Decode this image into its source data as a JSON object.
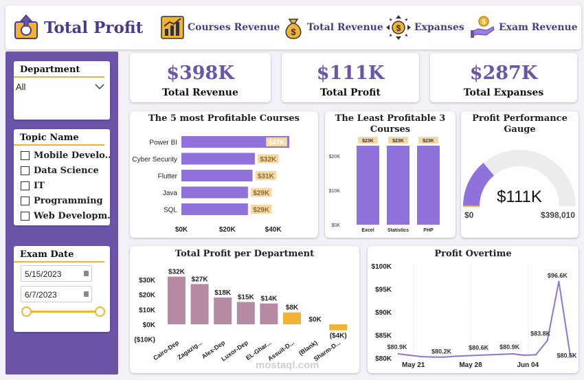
{
  "header": {
    "title": "Total Profit",
    "nav": [
      {
        "label": "Courses Revenue",
        "icon": "growth-chart-icon"
      },
      {
        "label": "Total Revenue",
        "icon": "money-bag-icon"
      },
      {
        "label": "Expanses",
        "icon": "dollar-arrows-icon"
      },
      {
        "label": "Exam Revenue",
        "icon": "hand-coins-icon"
      }
    ]
  },
  "filters": {
    "department": {
      "title": "Department",
      "selected": "All"
    },
    "topic": {
      "title": "Topic Name",
      "items": [
        "Mobile Develo...",
        "Data Science",
        "IT",
        "Programming",
        "Web Developm..."
      ]
    },
    "exam_date": {
      "title": "Exam Date",
      "start": "5/15/2023",
      "end": "6/7/2023"
    }
  },
  "kpis": [
    {
      "value": "$398K",
      "label": "Total Revenue"
    },
    {
      "value": "$111K",
      "label": "Total Profit"
    },
    {
      "value": "$287K",
      "label": "Total Expanses"
    }
  ],
  "colors": {
    "accent": "#6a55a9",
    "bar": "#8f72dc",
    "label_bg": "#f6d9a2",
    "dept_bar": "#b58aa2",
    "neg_bar": "#f2b233",
    "line": "#8f72dc"
  },
  "watermark": "mostaql.com",
  "chart_data": [
    {
      "type": "bar",
      "orientation": "horizontal",
      "title": "The 5 most Profitable Courses",
      "categories": [
        "Power BI",
        "Cyber Security",
        "Flutter",
        "Java",
        "SQL"
      ],
      "values": [
        47,
        32,
        31,
        29,
        29
      ],
      "data_labels": [
        "$47K",
        "$32K",
        "$31K",
        "$29K",
        "$29K"
      ],
      "xlim": [
        0,
        47
      ],
      "x_ticks": [
        "$0K",
        "$20K",
        "$40K"
      ]
    },
    {
      "type": "bar",
      "title": "The Least Profitable 3 Courses",
      "categories": [
        "Excel",
        "Statistics",
        "PHP"
      ],
      "values": [
        23,
        23,
        23
      ],
      "data_labels": [
        "$23K",
        "$23K",
        "$23K"
      ],
      "ylim": [
        0,
        27
      ],
      "y_ticks": [
        "$0K",
        "$10K",
        "$20K"
      ]
    },
    {
      "type": "gauge",
      "title": "Profit Performance Gauge",
      "value": 111,
      "value_label": "$111K",
      "min_label": "$0",
      "max_label": "$398,010",
      "max": 398.01
    },
    {
      "type": "bar",
      "title": "Total Profit per Department",
      "categories": [
        "Cairo-Dep",
        "Zagazig...",
        "Alex-Dep",
        "Luxor-Dep",
        "EL-Ghar...",
        "Assuit-D...",
        "(Blank)",
        "Sharm-D..."
      ],
      "values": [
        32,
        27,
        18,
        15,
        14,
        8,
        0,
        -4
      ],
      "data_labels": [
        "$32K",
        "$27K",
        "$18K",
        "$15K",
        "$14K",
        "$8K",
        "$0K",
        "($4K)"
      ],
      "ylim": [
        -10,
        35
      ],
      "y_ticks": [
        "($10K)",
        "$0K",
        "$10K",
        "$20K",
        "$30K"
      ]
    },
    {
      "type": "line",
      "title": "Profit Overtime",
      "values": [
        80.9,
        80.6,
        80.3,
        80.2,
        80.2,
        80.4,
        80.5,
        80.6,
        80.7,
        80.8,
        80.9,
        80.6,
        80.7,
        83.8,
        96.6,
        80.5
      ],
      "point_labels": [
        {
          "index": 0,
          "text": "$80.9K"
        },
        {
          "index": 4,
          "text": "$80.2K"
        },
        {
          "index": 7,
          "text": "$80.6K"
        },
        {
          "index": 10,
          "text": "$80.9K"
        },
        {
          "index": 13,
          "text": "$83.8K"
        },
        {
          "index": 14,
          "text": "$96.6K"
        },
        {
          "index": 15,
          "text": "$80.5K"
        }
      ],
      "x_ticks": [
        "May 21",
        "May 28",
        "Jun 04"
      ],
      "ylim": [
        80,
        100
      ],
      "y_ticks": [
        "$80K",
        "$85K",
        "$90K",
        "$95K",
        "$100K"
      ]
    }
  ]
}
